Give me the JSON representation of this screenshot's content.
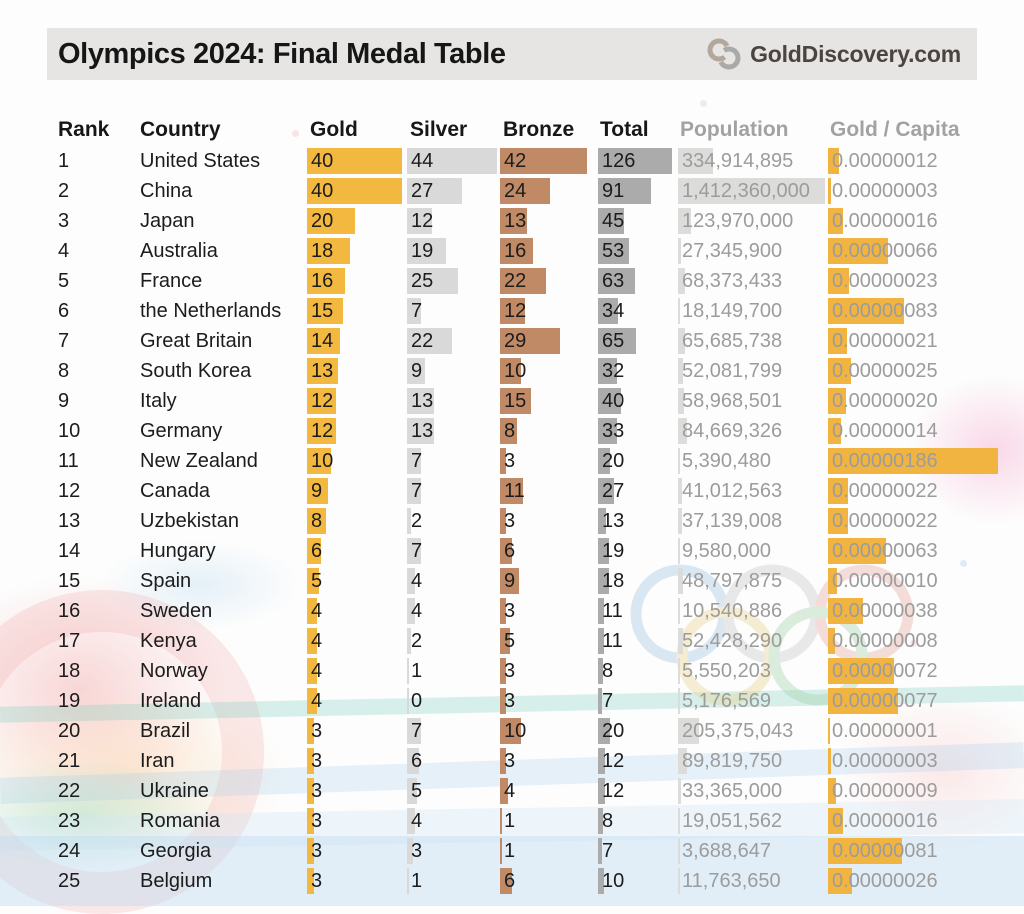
{
  "header": {
    "title": "Olympics 2024: Final Medal Table",
    "brand": "GoldDiscovery.com"
  },
  "colors": {
    "title_bar_bg": "#E6E5E3",
    "gold_bar": "#F3B83F",
    "silver_bar": "#D9D9D9",
    "bronze_bar": "#C08A66",
    "total_bar": "#ABABAB",
    "population_bar": "#DCDCDA",
    "gold_per_capita_bar": "#F1B441",
    "muted_text": "#9C9C9C",
    "main_text": "#1C1C1C"
  },
  "chart_data": {
    "type": "table",
    "title": "Olympics 2024: Final Medal Table",
    "columns": [
      "Rank",
      "Country",
      "Gold",
      "Silver",
      "Bronze",
      "Total",
      "Population",
      "Gold / Capita"
    ],
    "bar_columns": [
      "Gold",
      "Silver",
      "Bronze",
      "Total",
      "Population",
      "Gold / Capita"
    ],
    "rows": [
      {
        "rank": 1,
        "country": "United States",
        "gold": 40,
        "silver": 44,
        "bronze": 42,
        "total": 126,
        "population": "334,914,895",
        "gold_per_capita": "0.00000012"
      },
      {
        "rank": 2,
        "country": "China",
        "gold": 40,
        "silver": 27,
        "bronze": 24,
        "total": 91,
        "population": "1,412,360,000",
        "gold_per_capita": "0.00000003"
      },
      {
        "rank": 3,
        "country": "Japan",
        "gold": 20,
        "silver": 12,
        "bronze": 13,
        "total": 45,
        "population": "123,970,000",
        "gold_per_capita": "0.00000016"
      },
      {
        "rank": 4,
        "country": "Australia",
        "gold": 18,
        "silver": 19,
        "bronze": 16,
        "total": 53,
        "population": "27,345,900",
        "gold_per_capita": "0.00000066"
      },
      {
        "rank": 5,
        "country": "France",
        "gold": 16,
        "silver": 25,
        "bronze": 22,
        "total": 63,
        "population": "68,373,433",
        "gold_per_capita": "0.00000023"
      },
      {
        "rank": 6,
        "country": "the Netherlands",
        "gold": 15,
        "silver": 7,
        "bronze": 12,
        "total": 34,
        "population": "18,149,700",
        "gold_per_capita": "0.00000083"
      },
      {
        "rank": 7,
        "country": "Great Britain",
        "gold": 14,
        "silver": 22,
        "bronze": 29,
        "total": 65,
        "population": "65,685,738",
        "gold_per_capita": "0.00000021"
      },
      {
        "rank": 8,
        "country": "South Korea",
        "gold": 13,
        "silver": 9,
        "bronze": 10,
        "total": 32,
        "population": "52,081,799",
        "gold_per_capita": "0.00000025"
      },
      {
        "rank": 9,
        "country": "Italy",
        "gold": 12,
        "silver": 13,
        "bronze": 15,
        "total": 40,
        "population": "58,968,501",
        "gold_per_capita": "0.00000020"
      },
      {
        "rank": 10,
        "country": "Germany",
        "gold": 12,
        "silver": 13,
        "bronze": 8,
        "total": 33,
        "population": "84,669,326",
        "gold_per_capita": "0.00000014"
      },
      {
        "rank": 11,
        "country": "New Zealand",
        "gold": 10,
        "silver": 7,
        "bronze": 3,
        "total": 20,
        "population": "5,390,480",
        "gold_per_capita": "0.00000186"
      },
      {
        "rank": 12,
        "country": "Canada",
        "gold": 9,
        "silver": 7,
        "bronze": 11,
        "total": 27,
        "population": "41,012,563",
        "gold_per_capita": "0.00000022"
      },
      {
        "rank": 13,
        "country": "Uzbekistan",
        "gold": 8,
        "silver": 2,
        "bronze": 3,
        "total": 13,
        "population": "37,139,008",
        "gold_per_capita": "0.00000022"
      },
      {
        "rank": 14,
        "country": "Hungary",
        "gold": 6,
        "silver": 7,
        "bronze": 6,
        "total": 19,
        "population": "9,580,000",
        "gold_per_capita": "0.00000063"
      },
      {
        "rank": 15,
        "country": "Spain",
        "gold": 5,
        "silver": 4,
        "bronze": 9,
        "total": 18,
        "population": "48,797,875",
        "gold_per_capita": "0.00000010"
      },
      {
        "rank": 16,
        "country": "Sweden",
        "gold": 4,
        "silver": 4,
        "bronze": 3,
        "total": 11,
        "population": "10,540,886",
        "gold_per_capita": "0.00000038"
      },
      {
        "rank": 17,
        "country": "Kenya",
        "gold": 4,
        "silver": 2,
        "bronze": 5,
        "total": 11,
        "population": "52,428,290",
        "gold_per_capita": "0.00000008"
      },
      {
        "rank": 18,
        "country": "Norway",
        "gold": 4,
        "silver": 1,
        "bronze": 3,
        "total": 8,
        "population": "5,550,203",
        "gold_per_capita": "0.00000072"
      },
      {
        "rank": 19,
        "country": "Ireland",
        "gold": 4,
        "silver": 0,
        "bronze": 3,
        "total": 7,
        "population": "5,176,569",
        "gold_per_capita": "0.00000077"
      },
      {
        "rank": 20,
        "country": "Brazil",
        "gold": 3,
        "silver": 7,
        "bronze": 10,
        "total": 20,
        "population": "205,375,043",
        "gold_per_capita": "0.00000001"
      },
      {
        "rank": 21,
        "country": "Iran",
        "gold": 3,
        "silver": 6,
        "bronze": 3,
        "total": 12,
        "population": "89,819,750",
        "gold_per_capita": "0.00000003"
      },
      {
        "rank": 22,
        "country": "Ukraine",
        "gold": 3,
        "silver": 5,
        "bronze": 4,
        "total": 12,
        "population": "33,365,000",
        "gold_per_capita": "0.00000009"
      },
      {
        "rank": 23,
        "country": "Romania",
        "gold": 3,
        "silver": 4,
        "bronze": 1,
        "total": 8,
        "population": "19,051,562",
        "gold_per_capita": "0.00000016"
      },
      {
        "rank": 24,
        "country": "Georgia",
        "gold": 3,
        "silver": 3,
        "bronze": 1,
        "total": 7,
        "population": "3,688,647",
        "gold_per_capita": "0.00000081"
      },
      {
        "rank": 25,
        "country": "Belgium",
        "gold": 3,
        "silver": 1,
        "bronze": 6,
        "total": 10,
        "population": "11,763,650",
        "gold_per_capita": "0.00000026"
      }
    ]
  }
}
